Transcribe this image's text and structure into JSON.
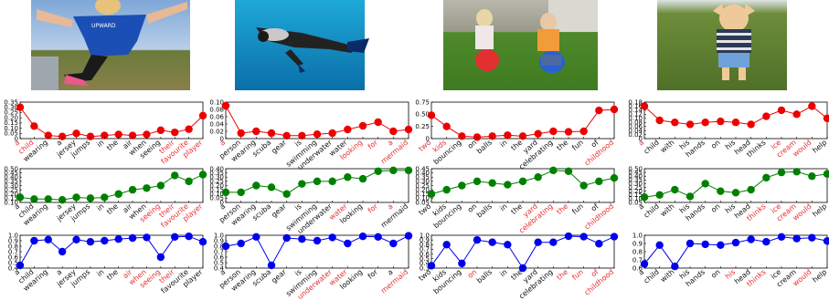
{
  "colors": {
    "row_colors": [
      "#ee0000",
      "#008000",
      "#0000ee"
    ],
    "highlight": "#e53030",
    "normal_text": "#111111"
  },
  "photos": [
    {
      "name": "boy-jumping-photo",
      "icon": "photo"
    },
    {
      "name": "scuba-diver-photo",
      "icon": "photo"
    },
    {
      "name": "children-on-space-hoppers-photo",
      "icon": "photo"
    },
    {
      "name": "child-with-hands-on-head-photo",
      "icon": "photo"
    }
  ],
  "chart_data": [
    {
      "type": "line",
      "panel": "caption1-row1",
      "categories": [
        "a",
        "child",
        "wearing",
        "a",
        "jersey",
        "jumps",
        "in",
        "the",
        "air",
        "when",
        "seeing",
        "their",
        "favourite",
        "player"
      ],
      "highlight": [
        0,
        1,
        11,
        12,
        13
      ],
      "ylim": [
        0,
        0.35
      ],
      "yticks": [
        0,
        0.05,
        0.1,
        0.15,
        0.2,
        0.25,
        0.3,
        0.35
      ],
      "ytick_labels": [
        "0",
        "0.05",
        "0.10",
        "0.15",
        "0.20",
        "0.25",
        "0.30",
        "0.35"
      ],
      "values": [
        0.3,
        0.12,
        0.03,
        0.02,
        0.05,
        0.02,
        0.03,
        0.04,
        0.03,
        0.04,
        0.08,
        0.06,
        0.09,
        0.22
      ]
    },
    {
      "type": "line",
      "panel": "caption2-row1",
      "categories": [
        "a",
        "person",
        "wearing",
        "scuba",
        "gear",
        "is",
        "swimming",
        "underwater",
        "water",
        "looking",
        "for",
        "a",
        "mermaid"
      ],
      "highlight": [
        0,
        9,
        10,
        11,
        12
      ],
      "ylim": [
        0,
        0.1
      ],
      "yticks": [
        0,
        0.02,
        0.04,
        0.06,
        0.08,
        0.1
      ],
      "ytick_labels": [
        "0",
        "0.02",
        "0.04",
        "0.06",
        "0.08",
        "0.10"
      ],
      "values": [
        0.09,
        0.015,
        0.02,
        0.015,
        0.008,
        0.008,
        0.012,
        0.015,
        0.025,
        0.035,
        0.045,
        0.02,
        0.025
      ]
    },
    {
      "type": "line",
      "panel": "caption3-row1",
      "categories": [
        "two",
        "kids",
        "bouncing",
        "on",
        "balls",
        "in",
        "the",
        "yard",
        "celebrating",
        "the",
        "fun",
        "of",
        "childhood"
      ],
      "highlight": [
        0,
        1,
        12
      ],
      "ylim": [
        0,
        0.75
      ],
      "yticks": [
        0,
        0.25,
        0.5,
        0.75
      ],
      "ytick_labels": [
        "0",
        "0.25",
        "0.50",
        "0.75"
      ],
      "values": [
        0.48,
        0.25,
        0.05,
        0.03,
        0.05,
        0.07,
        0.05,
        0.1,
        0.15,
        0.14,
        0.15,
        0.58,
        0.6
      ]
    },
    {
      "type": "line",
      "panel": "caption4-row1",
      "categories": [
        "a",
        "child",
        "with",
        "his",
        "hands",
        "on",
        "his",
        "head",
        "thinks",
        "ice",
        "cream",
        "would",
        "help"
      ],
      "highlight": [
        0,
        9,
        10,
        11
      ],
      "ylim": [
        0,
        0.18
      ],
      "yticks": [
        0,
        0.02,
        0.04,
        0.06,
        0.08,
        0.1,
        0.12,
        0.14,
        0.16,
        0.18
      ],
      "ytick_labels": [
        "0",
        "0.02",
        "0.04",
        "0.06",
        "0.08",
        "0.10",
        "0.12",
        "0.14",
        "0.16",
        "0.18"
      ],
      "values": [
        0.16,
        0.09,
        0.08,
        0.07,
        0.08,
        0.085,
        0.08,
        0.07,
        0.11,
        0.14,
        0.12,
        0.16,
        0.1
      ]
    },
    {
      "type": "line",
      "panel": "caption1-row2",
      "categories": [
        "a",
        "child",
        "wearing",
        "a",
        "jersey",
        "jumps",
        "in",
        "the",
        "air",
        "when",
        "seeing",
        "their",
        "favourite",
        "player"
      ],
      "highlight": [
        10,
        11,
        12,
        13
      ],
      "ylim": [
        0.1,
        0.5
      ],
      "yticks": [
        0.1,
        0.15,
        0.2,
        0.25,
        0.3,
        0.35,
        0.4,
        0.45,
        0.5
      ],
      "ytick_labels": [
        "0.10",
        "0.15",
        "0.20",
        "0.25",
        "0.30",
        "0.35",
        "0.40",
        "0.45",
        "0.50"
      ],
      "values": [
        0.16,
        0.14,
        0.14,
        0.13,
        0.16,
        0.15,
        0.16,
        0.2,
        0.25,
        0.27,
        0.3,
        0.42,
        0.35,
        0.43
      ]
    },
    {
      "type": "line",
      "panel": "caption2-row2",
      "categories": [
        "a",
        "person",
        "wearing",
        "scuba",
        "gear",
        "is",
        "swimming",
        "underwater",
        "water",
        "looking",
        "for",
        "a",
        "mermaid"
      ],
      "highlight": [
        8,
        10,
        11
      ],
      "ylim": [
        0,
        0.4
      ],
      "yticks": [
        0,
        0.05,
        0.1,
        0.15,
        0.2,
        0.25,
        0.3,
        0.35,
        0.4
      ],
      "ytick_labels": [
        "0",
        "0.05",
        "0.10",
        "0.15",
        "0.20",
        "0.25",
        "0.30",
        "0.35",
        "0.40"
      ],
      "values": [
        0.12,
        0.12,
        0.2,
        0.18,
        0.1,
        0.22,
        0.25,
        0.25,
        0.3,
        0.28,
        0.37,
        0.38,
        0.38
      ]
    },
    {
      "type": "line",
      "panel": "caption3-row2",
      "categories": [
        "two",
        "kids",
        "bouncing",
        "on",
        "balls",
        "in",
        "the",
        "yard",
        "celebrating",
        "the",
        "fun",
        "of",
        "childhood"
      ],
      "highlight": [
        7,
        8,
        9,
        12
      ],
      "ylim": [
        0.05,
        0.45
      ],
      "yticks": [
        0.05,
        0.1,
        0.15,
        0.2,
        0.25,
        0.3,
        0.35,
        0.4,
        0.45
      ],
      "ytick_labels": [
        "0.05",
        "0.10",
        "0.15",
        "0.20",
        "0.25",
        "0.30",
        "0.35",
        "0.40",
        "0.45"
      ],
      "values": [
        0.15,
        0.2,
        0.25,
        0.3,
        0.28,
        0.26,
        0.3,
        0.35,
        0.43,
        0.42,
        0.25,
        0.3,
        0.34
      ]
    },
    {
      "type": "line",
      "panel": "caption4-row2",
      "categories": [
        "a",
        "child",
        "with",
        "his",
        "hands",
        "on",
        "his",
        "head",
        "thinks",
        "ice",
        "cream",
        "would",
        "help"
      ],
      "highlight": [
        8,
        9,
        10,
        11
      ],
      "ylim": [
        0.05,
        0.5
      ],
      "yticks": [
        0.05,
        0.1,
        0.15,
        0.2,
        0.25,
        0.3,
        0.35,
        0.4,
        0.45,
        0.5
      ],
      "ytick_labels": [
        "0.05",
        "0.10",
        "0.15",
        "0.20",
        "0.25",
        "0.30",
        "0.35",
        "0.40",
        "0.45",
        "0.50"
      ],
      "values": [
        0.12,
        0.15,
        0.22,
        0.13,
        0.3,
        0.2,
        0.18,
        0.22,
        0.38,
        0.45,
        0.46,
        0.4,
        0.43
      ]
    },
    {
      "type": "line",
      "panel": "caption1-row3",
      "categories": [
        "a",
        "child",
        "wearing",
        "a",
        "jersey",
        "jumps",
        "in",
        "the",
        "air",
        "when",
        "seeing",
        "their",
        "favourite",
        "player"
      ],
      "highlight": [
        8,
        9,
        10,
        11
      ],
      "ylim": [
        0.4,
        1.0
      ],
      "yticks": [
        0.4,
        0.5,
        0.6,
        0.7,
        0.8,
        0.9,
        1.0
      ],
      "ytick_labels": [
        "0.4",
        "0.5",
        "0.6",
        "0.7",
        "0.8",
        "0.9",
        "1.0"
      ],
      "values": [
        0.45,
        0.9,
        0.92,
        0.7,
        0.92,
        0.88,
        0.9,
        0.93,
        0.95,
        0.96,
        0.6,
        0.97,
        0.98,
        0.88
      ]
    },
    {
      "type": "line",
      "panel": "caption2-row3",
      "categories": [
        "a",
        "person",
        "wearing",
        "scuba",
        "gear",
        "is",
        "swimming",
        "underwater",
        "water",
        "looking",
        "for",
        "a",
        "mermaid"
      ],
      "highlight": [
        7,
        8,
        12
      ],
      "ylim": [
        0.4,
        1.0
      ],
      "yticks": [
        0.4,
        0.5,
        0.6,
        0.7,
        0.8,
        0.9,
        1.0
      ],
      "ytick_labels": [
        "0.4",
        "0.5",
        "0.6",
        "0.7",
        "0.8",
        "0.9",
        "1.0"
      ],
      "values": [
        0.8,
        0.85,
        0.97,
        0.45,
        0.95,
        0.93,
        0.9,
        0.96,
        0.85,
        0.98,
        0.97,
        0.85,
        0.99
      ]
    },
    {
      "type": "line",
      "panel": "caption3-row3",
      "categories": [
        "two",
        "kids",
        "bouncing",
        "on",
        "balls",
        "in",
        "the",
        "yard",
        "celebrating",
        "the",
        "fun",
        "of",
        "childhood"
      ],
      "highlight": [
        3,
        9,
        10,
        11,
        12
      ],
      "ylim": [
        0.3,
        1.0
      ],
      "yticks": [
        0.3,
        0.4,
        0.5,
        0.6,
        0.7,
        0.8,
        0.9,
        1.0
      ],
      "ytick_labels": [
        "0.3",
        "0.4",
        "0.5",
        "0.6",
        "0.7",
        "0.8",
        "0.9",
        "1.0"
      ],
      "values": [
        0.35,
        0.8,
        0.4,
        0.9,
        0.85,
        0.8,
        0.3,
        0.85,
        0.85,
        0.98,
        0.97,
        0.82,
        0.97
      ]
    },
    {
      "type": "line",
      "panel": "caption4-row3",
      "categories": [
        "a",
        "child",
        "with",
        "his",
        "hands",
        "on",
        "his",
        "head",
        "thinks",
        "ice",
        "cream",
        "would",
        "help"
      ],
      "highlight": [
        6,
        8,
        11
      ],
      "ylim": [
        0.6,
        1.0
      ],
      "yticks": [
        0.6,
        0.7,
        0.8,
        0.9,
        1.0
      ],
      "ytick_labels": [
        "0.6",
        "0.7",
        "0.8",
        "0.9",
        "1.0"
      ],
      "values": [
        0.65,
        0.88,
        0.62,
        0.9,
        0.89,
        0.88,
        0.91,
        0.95,
        0.92,
        0.98,
        0.96,
        0.97,
        0.93
      ]
    }
  ]
}
